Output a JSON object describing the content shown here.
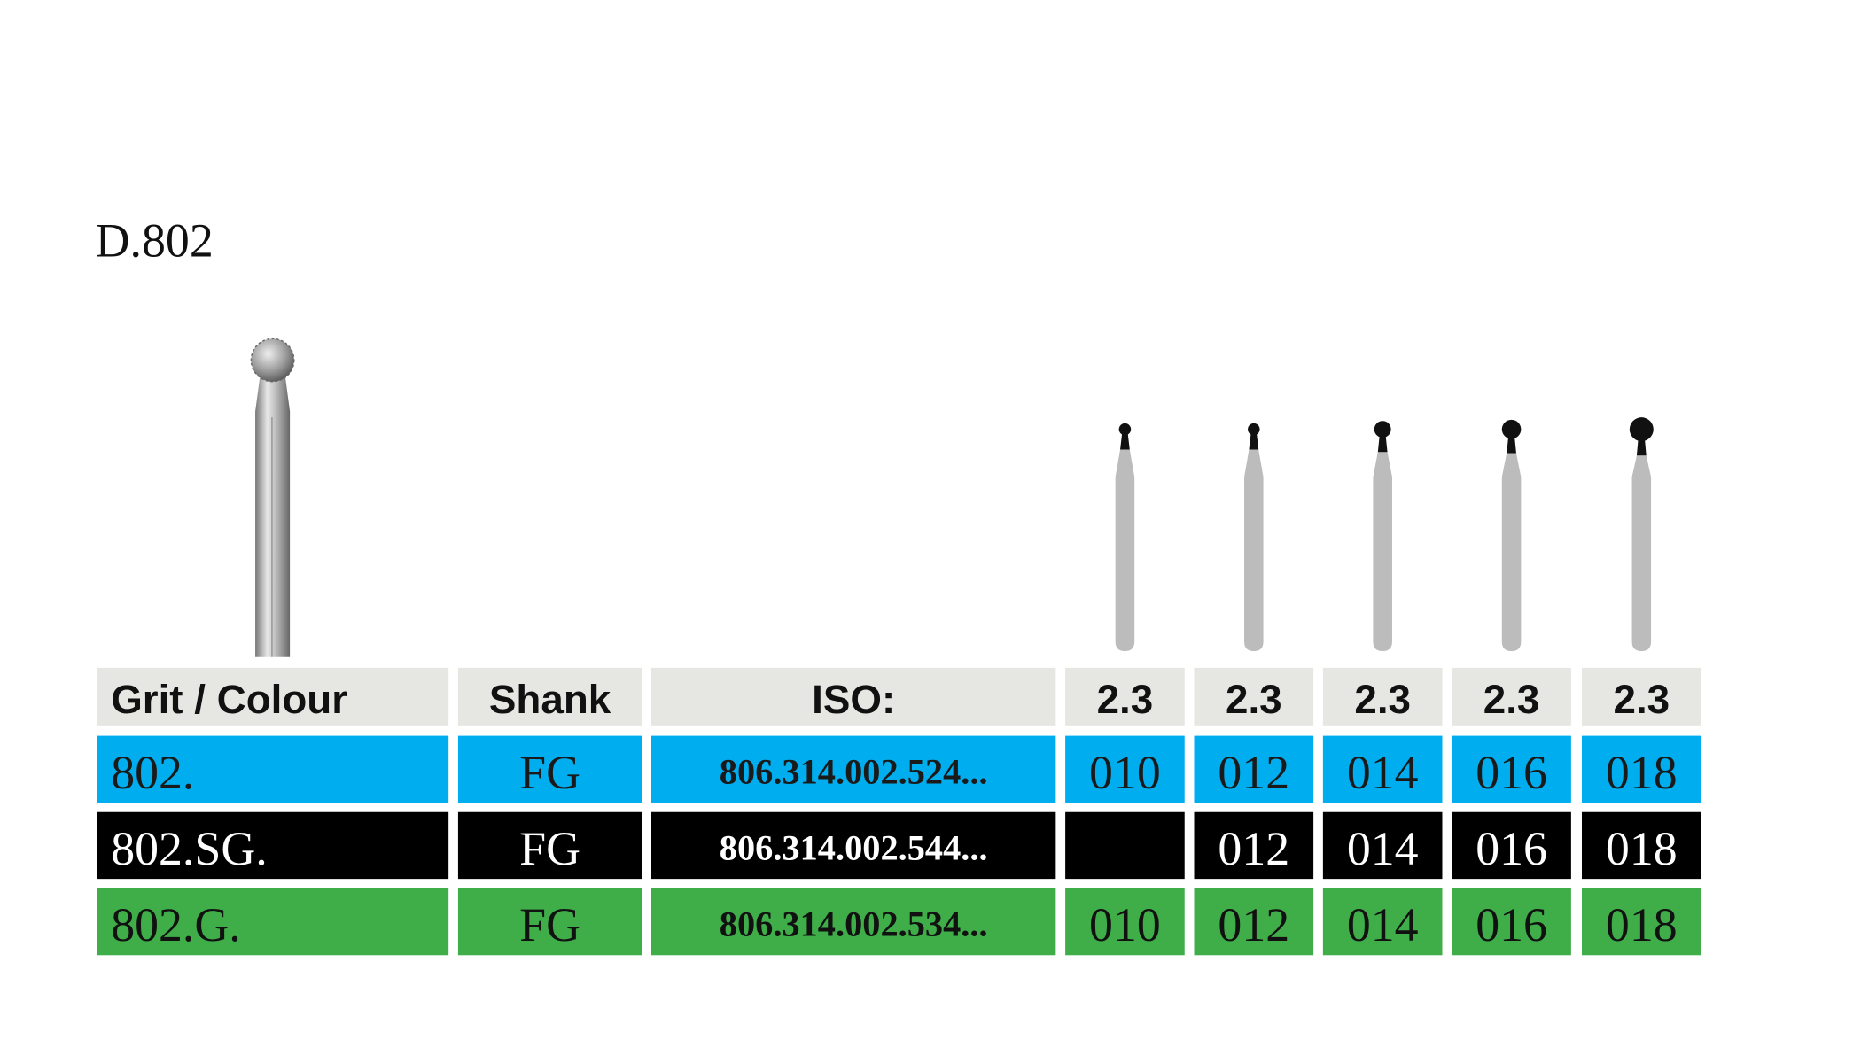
{
  "title": "D.802",
  "table": {
    "header": [
      "Grit / Colour",
      "Shank",
      "ISO:",
      "2.3",
      "2.3",
      "2.3",
      "2.3",
      "2.3"
    ],
    "rows": [
      [
        "802.",
        "FG",
        "806.314.002.524...",
        "010",
        "012",
        "014",
        "016",
        "018"
      ],
      [
        "802.SG.",
        "FG",
        "806.314.002.544...",
        null,
        "012",
        "014",
        "016",
        "018"
      ],
      [
        "802.G.",
        "FG",
        "806.314.002.534...",
        "010",
        "012",
        "014",
        "016",
        "018"
      ]
    ]
  }
}
